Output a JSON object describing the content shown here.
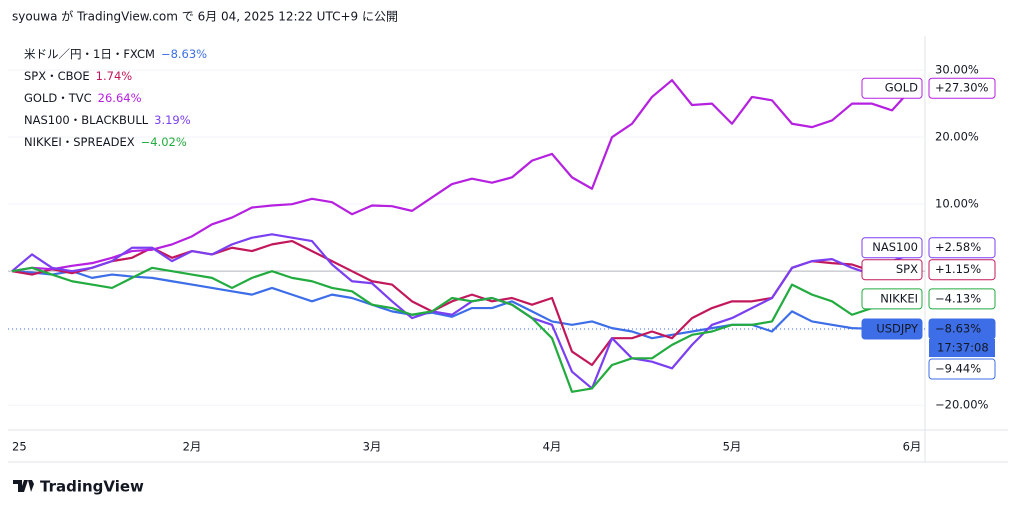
{
  "header": "syouwa が TradingView.com で 6月 04, 2025 12:22 UTC+9 に公開",
  "footer": "TradingView",
  "chart_data": {
    "type": "line",
    "categories": [
      "25",
      null,
      null,
      null,
      null,
      null,
      null,
      null,
      null,
      "2月",
      null,
      null,
      null,
      null,
      null,
      null,
      null,
      null,
      "3月",
      null,
      null,
      null,
      null,
      null,
      null,
      null,
      null,
      "4月",
      null,
      null,
      null,
      null,
      null,
      null,
      null,
      null,
      "5月",
      null,
      null,
      null,
      null,
      null,
      null,
      null,
      null,
      "6月"
    ],
    "ylim": [
      -23.7,
      34.5
    ],
    "yticks": [
      {
        "value": 30,
        "label": "30.00%"
      },
      {
        "value": 20,
        "label": "20.00%"
      },
      {
        "value": 10,
        "label": "10.00%"
      },
      {
        "value": -20,
        "label": "−20.00%"
      }
    ],
    "grid": true,
    "series": [
      {
        "name": "米ドル／円・1日・FXCM",
        "change": "−8.63%",
        "tag": "USDJPY",
        "last": {
          "value": -8.63,
          "label": "−8.63%"
        },
        "color": "#3d6ee8",
        "filled_tag": true,
        "values": [
          0,
          -0.2,
          -0.5,
          0,
          -1,
          -0.5,
          -0.8,
          -1,
          -1.5,
          -2,
          -2.5,
          -3,
          -3.5,
          -2.5,
          -3.5,
          -4.5,
          -3.5,
          -4,
          -5,
          -6,
          -6.5,
          -6.2,
          -6.8,
          -5.5,
          -5.5,
          -4.5,
          -6,
          -7.5,
          -8,
          -7.5,
          -8.5,
          -9,
          -10,
          -9.5,
          -9,
          -8.5,
          -8,
          -8,
          -9,
          -6,
          -7.5,
          -8,
          -8.5,
          -8.6,
          -8.6,
          -8.63
        ]
      },
      {
        "name": "SPX・CBOE",
        "change": "1.74%",
        "tag": "SPX",
        "last": {
          "value": 1.15,
          "label": "+1.15%"
        },
        "color": "#c2185b",
        "values": [
          0,
          -0.5,
          0.3,
          -0.3,
          0.5,
          1.5,
          2,
          3.5,
          2,
          3,
          2.5,
          3.5,
          3,
          4,
          4.5,
          3,
          1.5,
          0,
          -1.5,
          -2,
          -4.5,
          -6,
          -4.5,
          -3.5,
          -4.5,
          -4,
          -5,
          -4,
          -12,
          -14,
          -10,
          -10,
          -9,
          -10,
          -7,
          -5.5,
          -4.5,
          -4.5,
          -4,
          0.5,
          1.5,
          1.2,
          1,
          0,
          0.5,
          1.15
        ]
      },
      {
        "name": "GOLD・TVC",
        "change": "26.64%",
        "tag": "GOLD",
        "last": {
          "value": 27.3,
          "label": "+27.30%"
        },
        "color": "#b620e0",
        "values": [
          0,
          0.5,
          0.3,
          0.8,
          1.2,
          2,
          3,
          3.2,
          4,
          5.2,
          7,
          8,
          9.5,
          9.8,
          10,
          10.8,
          10.3,
          8.5,
          9.8,
          9.7,
          9,
          11,
          13,
          13.8,
          13.2,
          14,
          16.5,
          17.5,
          14,
          12.3,
          20,
          22,
          26,
          28.5,
          24.8,
          25,
          22,
          26,
          25.5,
          22,
          21.5,
          22.5,
          25,
          25,
          24,
          27.3
        ]
      },
      {
        "name": "NAS100・BLACKBULL",
        "change": "3.19%",
        "tag": "NAS100",
        "last": {
          "value": 2.58,
          "label": "+2.58%"
        },
        "color": "#7b3ff2",
        "values": [
          0,
          2.5,
          0.5,
          0,
          0.5,
          1.5,
          3.5,
          3.5,
          1.5,
          3,
          2.5,
          4,
          5,
          5.5,
          5,
          4.5,
          1,
          -1.5,
          -1.8,
          -4.5,
          -7,
          -6,
          -6.5,
          -4.5,
          -4,
          -5,
          -7,
          -8,
          -15,
          -17.5,
          -10,
          -13,
          -13.5,
          -14.5,
          -11,
          -8,
          -7,
          -5.5,
          -4,
          0.5,
          1.5,
          1.8,
          0.5,
          -0.5,
          1.5,
          2.58
        ]
      },
      {
        "name": "NIKKEI・SPREADEX",
        "change": "−4.02%",
        "tag": "NIKKEI",
        "last": {
          "value": -4.13,
          "label": "−4.13%"
        },
        "color": "#22ab3e",
        "values": [
          0,
          0.5,
          -0.5,
          -1.5,
          -2,
          -2.5,
          -1,
          0.5,
          0,
          -0.5,
          -1,
          -2.5,
          -1,
          0,
          -1,
          -1.5,
          -2.5,
          -3,
          -5,
          -5.5,
          -6.5,
          -6,
          -4,
          -4.5,
          -4,
          -5,
          -7,
          -10,
          -18,
          -17.5,
          -14,
          -13,
          -13,
          -11,
          -9.5,
          -9,
          -8,
          -8,
          -7.5,
          -2,
          -3.5,
          -4.5,
          -6.5,
          -5.5,
          -5,
          -4.13
        ]
      }
    ],
    "annotations": [
      "17:37:08",
      "−9.44%"
    ]
  }
}
